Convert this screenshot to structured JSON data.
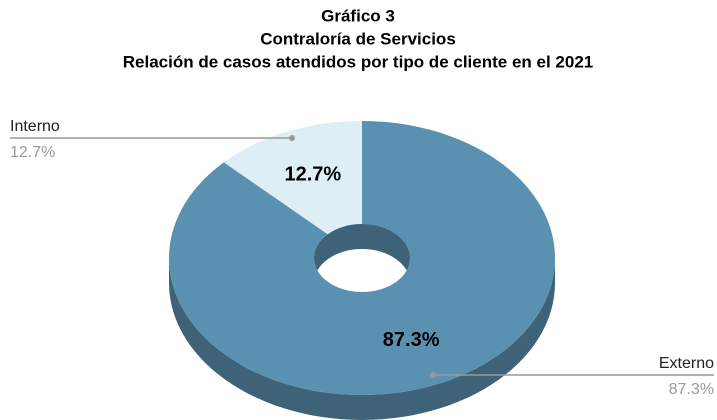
{
  "chart_data": {
    "type": "pie",
    "title": "Gráfico 3",
    "subtitle": "Contraloría de Servicios",
    "subtitle2": "Relación de casos atendidos por tipo de cliente en el 2021",
    "categories": [
      "Interno",
      "Externo"
    ],
    "values": [
      12.7,
      87.3
    ],
    "value_labels": [
      "12.7%",
      "87.3%"
    ],
    "colors": [
      "#ddeef5",
      "#5b91b0"
    ]
  }
}
